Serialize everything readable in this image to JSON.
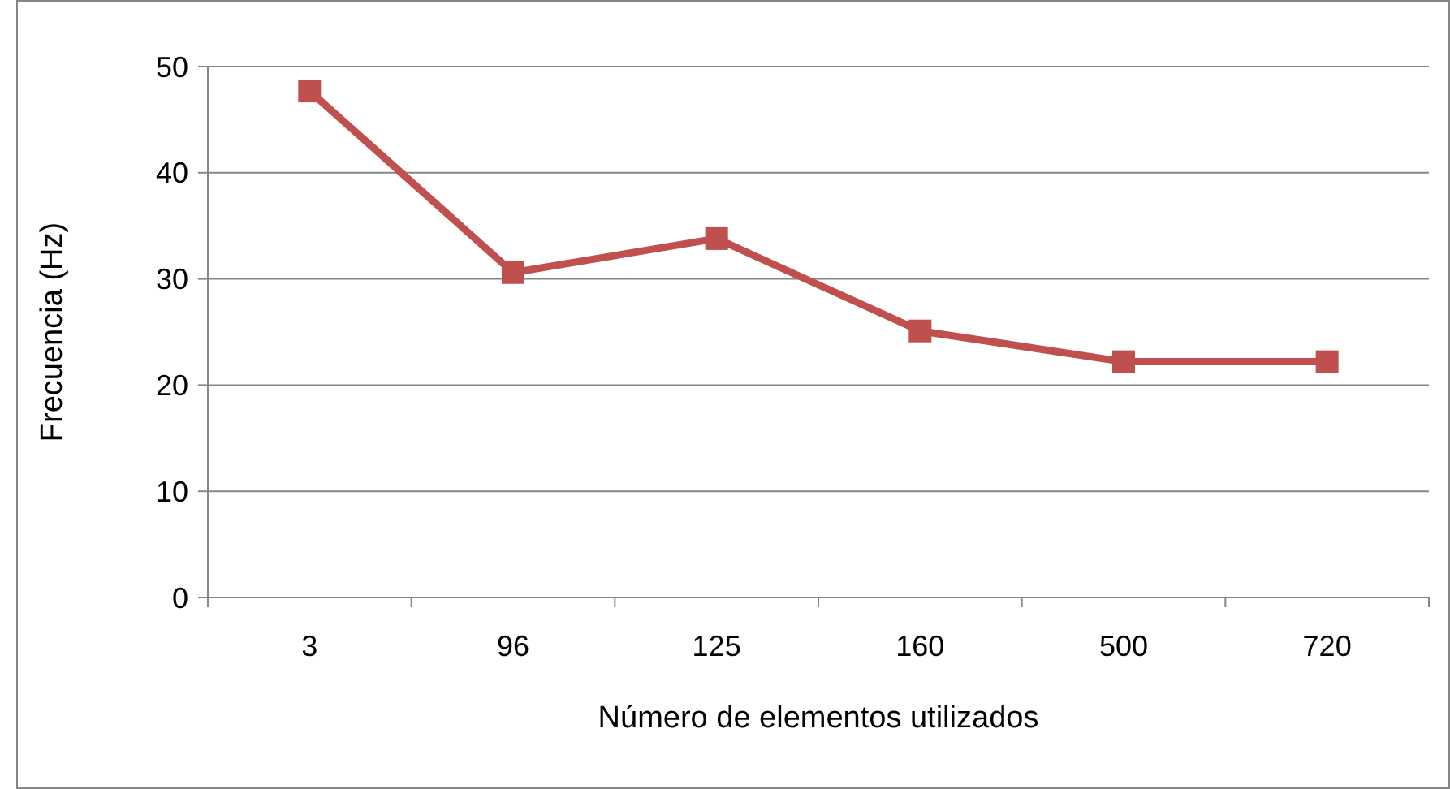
{
  "chart_data": {
    "type": "line",
    "xlabel": "Número de elementos utilizados",
    "ylabel": "Frecuencia (Hz)",
    "categories": [
      "3",
      "96",
      "125",
      "160",
      "500",
      "720"
    ],
    "series": [
      {
        "color": "#c0504d",
        "values": [
          47.7,
          30.6,
          33.8,
          25.1,
          22.2,
          22.2
        ]
      }
    ],
    "ylim": [
      0,
      50
    ],
    "yticks": [
      0,
      10,
      20,
      30,
      40,
      50
    ],
    "grid": "y",
    "marker": "square",
    "line_style": "solid"
  }
}
